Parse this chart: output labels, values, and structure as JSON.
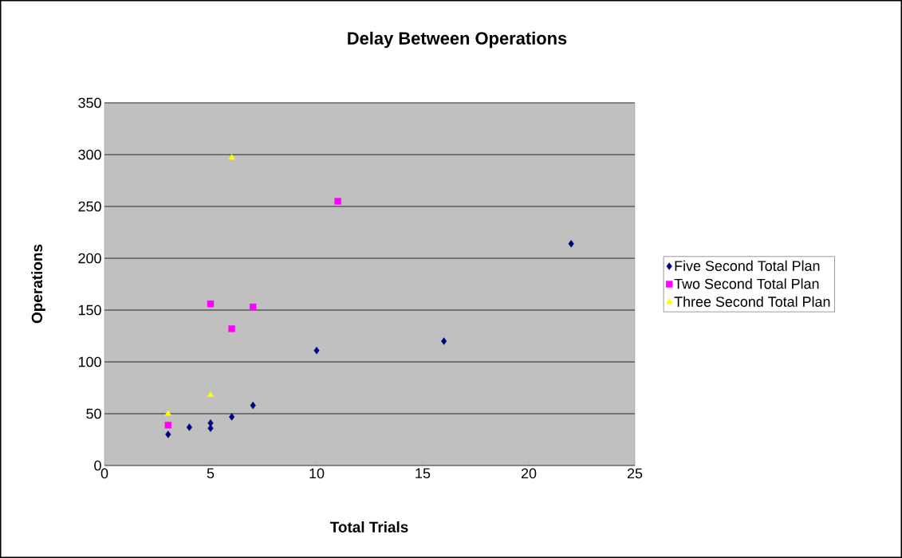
{
  "chart_data": {
    "type": "scatter",
    "title": "Delay Between Operations",
    "xlabel": "Total Trials",
    "ylabel": "Operations",
    "xlim": [
      0,
      25
    ],
    "xticks": [
      0,
      5,
      10,
      15,
      20,
      25
    ],
    "ylim": [
      0,
      350
    ],
    "yticks": [
      0,
      50,
      100,
      150,
      200,
      250,
      300,
      350
    ],
    "grid": "y",
    "legend": "right",
    "series": [
      {
        "name": "Five Second Total Plan",
        "color": "#000080",
        "marker": "diamond",
        "x": [
          3,
          4,
          5,
          5,
          6,
          7,
          10,
          16,
          22
        ],
        "values": [
          30,
          37,
          41,
          36,
          47,
          58,
          111,
          120,
          214
        ]
      },
      {
        "name": "Two Second Total Plan",
        "color": "#ff00ff",
        "marker": "square",
        "x": [
          3,
          5,
          6,
          7,
          11
        ],
        "values": [
          39,
          156,
          132,
          153,
          255
        ]
      },
      {
        "name": "Three Second Total Plan",
        "color": "#ffff00",
        "marker": "triangle",
        "x": [
          3,
          5,
          6
        ],
        "values": [
          50,
          68,
          297
        ]
      }
    ]
  }
}
